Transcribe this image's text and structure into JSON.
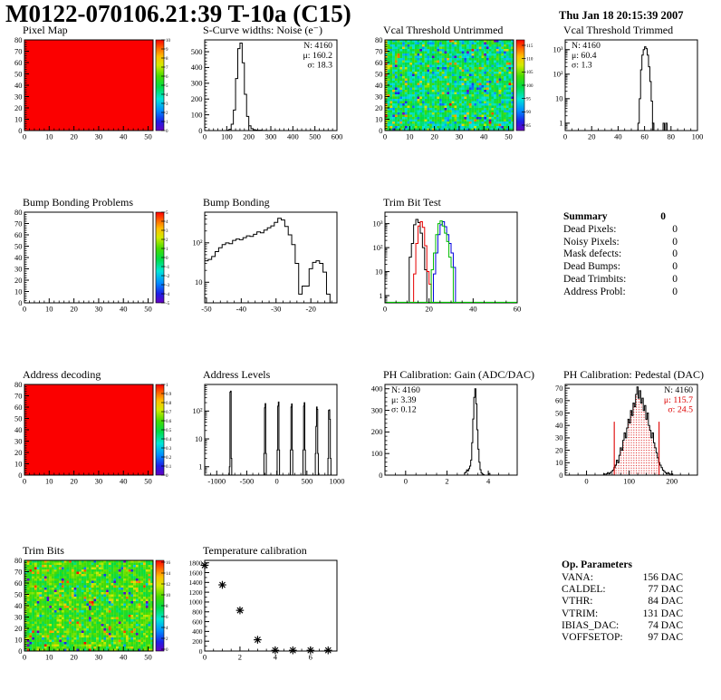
{
  "header": {
    "title": "M0122-070106.21:39 T-10a (C15)",
    "date": "Thu Jan 18 20:15:39 2007"
  },
  "summary": {
    "title": "Summary",
    "total": "0",
    "rows": [
      {
        "label": "Dead Pixels:",
        "value": "0"
      },
      {
        "label": "Noisy Pixels:",
        "value": "0"
      },
      {
        "label": "Mask defects:",
        "value": "0"
      },
      {
        "label": "Dead Bumps:",
        "value": "0"
      },
      {
        "label": "Dead Trimbits:",
        "value": "0"
      },
      {
        "label": "Address Probl:",
        "value": "0"
      }
    ]
  },
  "op_parameters": {
    "title": "Op. Parameters",
    "rows": [
      {
        "label": "VANA:",
        "value": "156 DAC"
      },
      {
        "label": "CALDEL:",
        "value": "77 DAC"
      },
      {
        "label": "VTHR:",
        "value": "84 DAC"
      },
      {
        "label": "VTRIM:",
        "value": "131 DAC"
      },
      {
        "label": "IBIAS_DAC:",
        "value": "74 DAC"
      },
      {
        "label": "VOFFSETOP:",
        "value": "97 DAC"
      }
    ]
  },
  "chart_data": [
    {
      "title": "Pixel Map",
      "type": "heatmap",
      "x": {
        "min": 0,
        "max": 52,
        "ticks": [
          0,
          10,
          20,
          30,
          40,
          50
        ]
      },
      "y": {
        "min": 0,
        "max": 80,
        "ticks": [
          0,
          10,
          20,
          30,
          40,
          50,
          60,
          70,
          80
        ]
      },
      "map": {
        "mode": "uniform",
        "value": 10,
        "color": "#fb0000"
      },
      "colorbar": {
        "min": 0,
        "max": 10,
        "labels": [
          "10",
          "9",
          "8",
          "7",
          "6",
          "5",
          "4",
          "3",
          "2",
          "1",
          "0"
        ],
        "inset": 0
      }
    },
    {
      "title": "S-Curve widths: Noise (e⁻)",
      "type": "histogram",
      "x": {
        "min": 0,
        "max": 600,
        "ticks": [
          0,
          100,
          200,
          300,
          400,
          500,
          600
        ]
      },
      "y": {
        "min": 0,
        "max": 575,
        "ticks": [
          0,
          100,
          200,
          300,
          400,
          500
        ]
      },
      "series": [
        {
          "color": "#000000",
          "segments": [
            {
              "x0": 100,
              "bw": 10,
              "values": [
                2,
                8,
                40,
                130,
                330,
                520,
                555,
                430,
                230,
                90,
                30,
                12,
                6,
                3,
                2,
                2,
                1,
                1
              ]
            }
          ]
        }
      ],
      "stats": {
        "pos": "tr",
        "lines": [
          {
            "t": "N: 4160",
            "c": "#000000"
          },
          {
            "t": "μ: 160.2",
            "c": "#000000"
          },
          {
            "t": "σ: 18.3",
            "c": "#000000"
          }
        ]
      }
    },
    {
      "title": "Vcal Threshold Untrimmed",
      "type": "heatmap",
      "x": {
        "min": 0,
        "max": 52,
        "ticks": [
          0,
          10,
          20,
          30,
          40,
          50
        ]
      },
      "y": {
        "min": 0,
        "max": 80,
        "ticks": [
          0,
          10,
          20,
          30,
          40,
          50,
          60,
          70,
          80
        ]
      },
      "map": {
        "mode": "noise",
        "seed": 11,
        "mean": 99,
        "sigma": 3.2,
        "vmin": 84,
        "vmax": 117,
        "hotp": 0.05,
        "hotdv": 10,
        "coldp": 0.09,
        "colddv": 8,
        "col0": 9
      },
      "colorbar": {
        "min": 85,
        "max": 115,
        "labels": [
          "115",
          "110",
          "105",
          "100",
          "95",
          "90",
          "85"
        ],
        "inset": 6
      }
    },
    {
      "title": "Vcal Threshold Trimmed",
      "type": "histogram",
      "x": {
        "min": 0,
        "max": 100,
        "ticks": [
          0,
          20,
          40,
          60,
          80,
          100
        ],
        "mdiv": 4
      },
      "y": {
        "min": 0.5,
        "max": 2500,
        "log": true
      },
      "series": [
        {
          "color": "#000000",
          "segments": [
            {
              "x0": 55,
              "bw": 1,
              "values": [
                1,
                10,
                150,
                600,
                1000,
                1300,
                1100,
                600,
                200,
                50,
                8,
                1
              ]
            },
            {
              "x0": 66,
              "bw": 1,
              "values": [
                1
              ]
            },
            {
              "x0": 74,
              "bw": 1,
              "values": [
                1
              ]
            },
            {
              "x0": 76,
              "bw": 1,
              "values": [
                1
              ]
            }
          ]
        }
      ],
      "stats": {
        "pos": "tl",
        "lines": [
          {
            "t": "N: 4160",
            "c": "#000000"
          },
          {
            "t": "μ: 60.4",
            "c": "#000000"
          },
          {
            "t": "σ:  1.3",
            "c": "#000000"
          }
        ]
      }
    },
    {
      "title": "Bump Bonding Problems",
      "type": "heatmap",
      "x": {
        "min": 0,
        "max": 52,
        "ticks": [
          0,
          10,
          20,
          30,
          40,
          50
        ]
      },
      "y": {
        "min": 0,
        "max": 80,
        "ticks": [
          0,
          10,
          20,
          30,
          40,
          50,
          60,
          70,
          80
        ]
      },
      "map": {
        "mode": "empty"
      },
      "colorbar": {
        "min": -5,
        "max": 5,
        "labels": [
          "5",
          "4",
          "3",
          "2",
          "1",
          "0",
          "-1",
          "-2",
          "-3",
          "-4",
          "-5"
        ],
        "inset": 0
      }
    },
    {
      "title": "Bump Bonding",
      "type": "histogram",
      "x": {
        "min": -50.5,
        "max": -12.5,
        "ticks": [
          -50,
          -40,
          -30,
          -20
        ]
      },
      "y": {
        "min": 3,
        "max": 600,
        "log": true
      },
      "series": [
        {
          "color": "#000000",
          "segments": [
            {
              "x0": -50.5,
              "bw": 1,
              "values": [
                35,
                38,
                45,
                60,
                75,
                90,
                100,
                95,
                115,
                125,
                120,
                135,
                150,
                145,
                165,
                190,
                180,
                210,
                240,
                270,
                330,
                420,
                380,
                260,
                160,
                90,
                30,
                5,
                8,
                8,
                22,
                32,
                35,
                30,
                18,
                5
              ]
            }
          ]
        }
      ]
    },
    {
      "title": "Trim Bit Test",
      "type": "histogram",
      "x": {
        "min": 0,
        "max": 60,
        "ticks": [
          0,
          20,
          40,
          60
        ],
        "mdiv": 4
      },
      "y": {
        "min": 0.5,
        "max": 3000,
        "log": true
      },
      "series": [
        {
          "color": "#000000",
          "segments": [
            {
              "x0": 11,
              "bw": 1,
              "values": [
                40,
                150,
                900,
                1500,
                1100,
                400,
                100,
                12
              ]
            }
          ]
        },
        {
          "color": "#e60000",
          "segments": [
            {
              "x0": 13,
              "bw": 1,
              "values": [
                8,
                150,
                800,
                1200,
                700,
                120,
                10,
                3
              ]
            }
          ]
        },
        {
          "color": "#0000dd",
          "segments": [
            {
              "x0": 22,
              "bw": 1,
              "values": [
                8,
                60,
                350,
                900,
                1200,
                750,
                350,
                150,
                60,
                15
              ]
            }
          ]
        },
        {
          "color": "#00bb00",
          "full": true,
          "segments": [
            {
              "x0": 21,
              "bw": 1,
              "values": [
                12,
                60,
                350,
                1000,
                1300,
                800,
                400,
                180,
                40,
                15
              ]
            }
          ]
        }
      ]
    },
    {
      "title": "Address decoding",
      "type": "heatmap",
      "x": {
        "min": 0,
        "max": 52,
        "ticks": [
          0,
          10,
          20,
          30,
          40,
          50
        ]
      },
      "y": {
        "min": 0,
        "max": 80,
        "ticks": [
          0,
          10,
          20,
          30,
          40,
          50,
          60,
          70,
          80
        ]
      },
      "map": {
        "mode": "uniform",
        "value": 1,
        "color": "#fb0000"
      },
      "colorbar": {
        "min": 0,
        "max": 1,
        "labels": [
          "1",
          "0.9",
          "0.8",
          "0.7",
          "0.6",
          "0.5",
          "0.4",
          "0.3",
          "0.2",
          "0.1",
          "0"
        ],
        "inset": 0
      }
    },
    {
      "title": "Address Levels",
      "type": "histogram",
      "x": {
        "min": -1200,
        "max": 1000,
        "ticks": [
          -1000,
          -500,
          0,
          500,
          1000
        ]
      },
      "y": {
        "min": 0.5,
        "max": 900,
        "log": true
      },
      "series": [
        {
          "color": "#000000",
          "segments": [
            {
              "x0": -790,
              "bw": 10,
              "values": [
                1,
                480,
                520,
                2
              ]
            },
            {
              "x0": -215,
              "bw": 10,
              "values": [
                3,
                130,
                185,
                3
              ]
            },
            {
              "x0": 5,
              "bw": 10,
              "values": [
                4,
                150,
                210,
                4
              ]
            },
            {
              "x0": 225,
              "bw": 10,
              "values": [
                4,
                140,
                180,
                4
              ]
            },
            {
              "x0": 435,
              "bw": 10,
              "values": [
                4,
                150,
                200,
                4
              ]
            },
            {
              "x0": 640,
              "bw": 10,
              "values": [
                3,
                28,
                140,
                115,
                3
              ]
            },
            {
              "x0": 850,
              "bw": 10,
              "values": [
                2,
                105,
                110,
                50,
                2
              ]
            }
          ]
        }
      ]
    },
    {
      "title": "PH Calibration: Gain (ADC/DAC)",
      "type": "histogram",
      "x": {
        "min": -1,
        "max": 5.4,
        "ticks": [
          0,
          2,
          4
        ],
        "mdiv": 4
      },
      "y": {
        "min": 0,
        "max": 420,
        "ticks": [
          0,
          100,
          200,
          300,
          400
        ]
      },
      "series": [
        {
          "color": "#000000",
          "segments": [
            {
              "x0": 2.85,
              "bw": 0.05,
              "values": [
                10,
                14,
                24,
                20,
                30,
                42,
                70,
                150,
                260,
                360,
                400,
                330,
                210,
                120,
                60,
                25,
                10,
                5,
                2
              ]
            },
            {
              "x0": 4.02,
              "bw": 0.06,
              "values": [
                8
              ]
            }
          ]
        }
      ],
      "stats": {
        "pos": "tl",
        "lines": [
          {
            "t": "N: 4160",
            "c": "#000000"
          },
          {
            "t": "μ: 3.39",
            "c": "#000000"
          },
          {
            "t": "σ: 0.12",
            "c": "#000000"
          }
        ]
      }
    },
    {
      "title": "PH Calibration: Pedestal (DAC)",
      "type": "histogram",
      "x": {
        "min": -50,
        "max": 260,
        "ticks": [
          0,
          100,
          200
        ]
      },
      "y": {
        "min": 0,
        "max": 73,
        "ticks": [
          0,
          10,
          20,
          30,
          40,
          50,
          60,
          70
        ]
      },
      "series": [
        {
          "color": "#000000",
          "segments": [
            {
              "x0": 40,
              "bw": 3,
              "values": [
                1,
                0,
                1,
                2,
                1,
                2,
                3,
                4,
                6,
                8,
                12,
                10,
                16,
                22,
                20,
                28,
                34,
                30,
                38,
                45,
                42,
                52,
                48,
                58,
                55,
                65,
                71,
                62,
                68,
                58,
                62,
                52,
                56,
                45,
                50,
                40,
                36,
                30,
                34,
                26,
                22,
                18,
                14,
                10,
                8,
                6,
                4,
                3,
                2,
                1,
                2,
                1,
                0,
                1
              ]
            }
          ]
        }
      ],
      "fill": {
        "from": 65,
        "to": 170,
        "color": "#dd0000"
      },
      "vlines": [
        {
          "x": 65,
          "y": 43
        },
        {
          "x": 170,
          "y": 43
        }
      ],
      "stats": {
        "pos": "tr",
        "lines": [
          {
            "t": "N: 4160",
            "c": "#000000"
          },
          {
            "t": "μ: 115.7",
            "c": "#dd0000"
          },
          {
            "t": "σ: 24.5",
            "c": "#dd0000"
          }
        ]
      }
    },
    {
      "title": "Trim Bits",
      "type": "heatmap",
      "x": {
        "min": 0,
        "max": 52,
        "ticks": [
          0,
          10,
          20,
          30,
          40,
          50
        ]
      },
      "y": {
        "min": 0,
        "max": 80,
        "ticks": [
          0,
          10,
          20,
          30,
          40,
          50,
          60,
          70,
          80
        ]
      },
      "map": {
        "mode": "noise",
        "seed": 77,
        "mean": 9.4,
        "sigma": 1.1,
        "vmin": 0,
        "vmax": 16.5,
        "hotp": 0.06,
        "hotdv": 4,
        "coldp": 0.04,
        "colddv": 7
      },
      "colorbar": {
        "min": 0,
        "max": 16,
        "labels": [
          "16",
          "14",
          "12",
          "10",
          "8",
          "6",
          "4",
          "2",
          "0"
        ],
        "inset": 2
      }
    },
    {
      "title": "Temperature calibration",
      "type": "scatter",
      "x": {
        "min": 0,
        "max": 7.5,
        "ticks": [
          0,
          2,
          4,
          6
        ],
        "mdiv": 4
      },
      "y": {
        "min": 0,
        "max": 1850,
        "ticks": [
          0,
          200,
          400,
          600,
          800,
          1000,
          1200,
          1400,
          1600,
          1800
        ],
        "mdiv": 2,
        "lfs": 7.5
      },
      "points": [
        [
          0,
          1750
        ],
        [
          1,
          1350
        ],
        [
          2,
          830
        ],
        [
          3,
          230
        ],
        [
          4,
          15
        ],
        [
          5,
          15
        ],
        [
          6,
          15
        ],
        [
          7,
          15
        ]
      ]
    }
  ]
}
